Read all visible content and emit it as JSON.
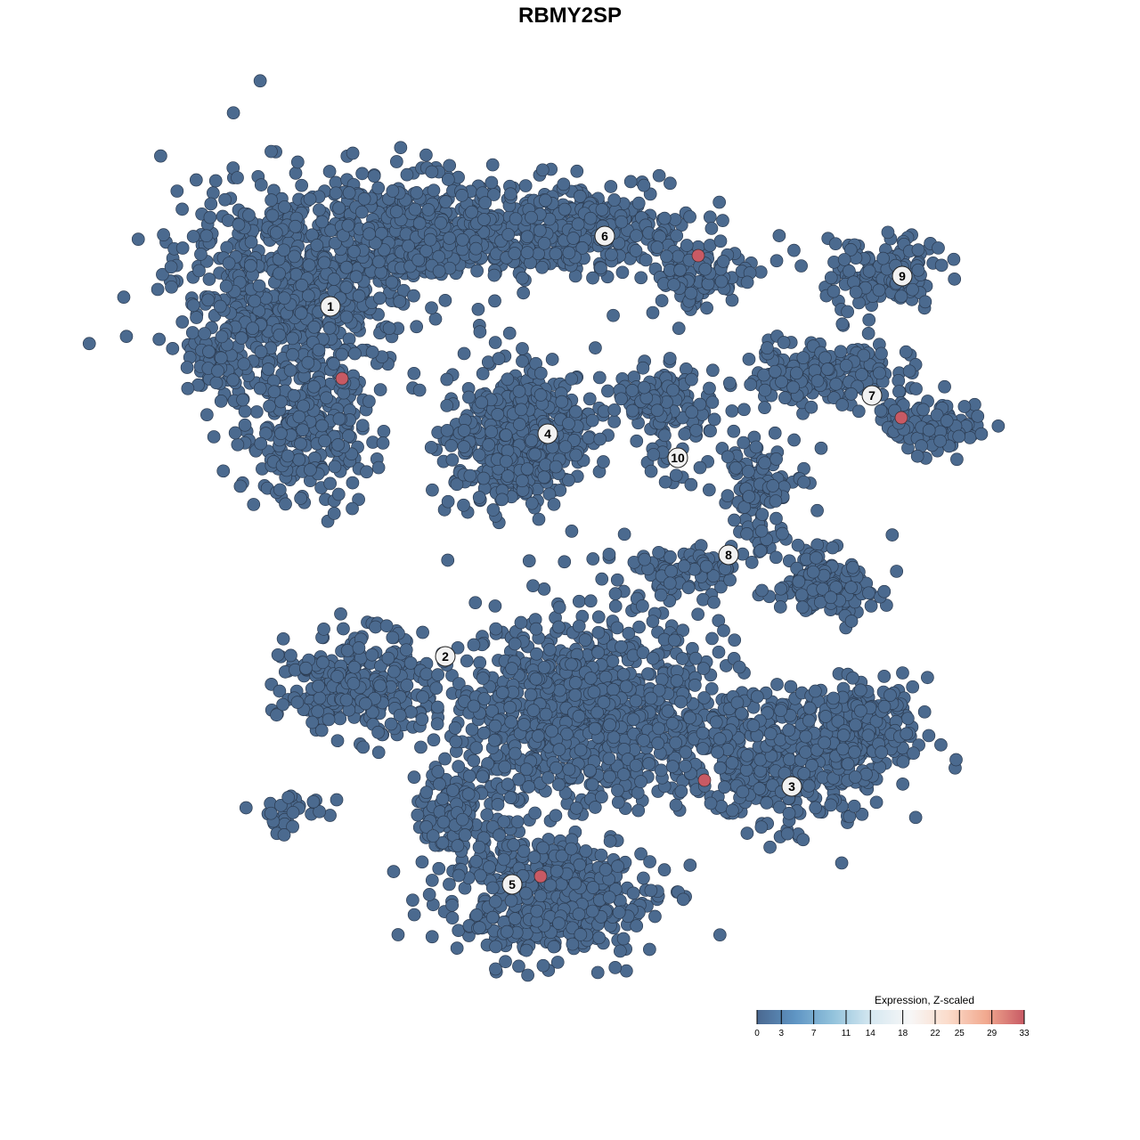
{
  "chart_data": {
    "type": "scatter",
    "title": "RBMY2SP",
    "xlabel": "",
    "ylabel": "",
    "grid": false,
    "cluster_labels": [
      "1",
      "2",
      "3",
      "4",
      "5",
      "6",
      "7",
      "8",
      "9",
      "10"
    ],
    "expressing_cells_per_cluster": {
      "1": 1,
      "6": 1,
      "7": 1,
      "3": 1,
      "5": 1
    },
    "non_expressing_color": "#4b6a8f",
    "expressing_color": "#c85a64",
    "legend": {
      "title": "Expression, Z-scaled",
      "placement": "bottom-right",
      "range": [
        0,
        33
      ],
      "ticks": [
        0,
        3,
        7,
        11,
        14,
        18,
        22,
        25,
        29,
        33
      ],
      "tick_labels": [
        "0",
        "3",
        "7",
        "11",
        "14",
        "18",
        "22",
        "25",
        "29",
        "33"
      ],
      "colors": [
        "#4a6890",
        "#5f95c4",
        "#93c3dc",
        "#d6e8f1",
        "#f7f7f7",
        "#fbdccb",
        "#f1a98f",
        "#c85a64"
      ]
    }
  }
}
